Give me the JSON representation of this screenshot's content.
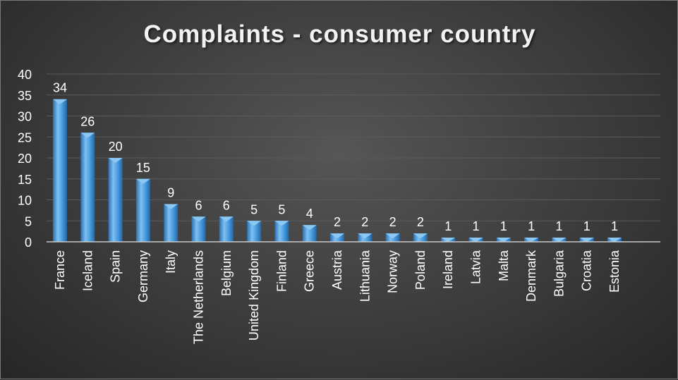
{
  "chart_data": {
    "type": "bar",
    "title": "Complaints - consumer country",
    "xlabel": "",
    "ylabel": "",
    "ylim": [
      0,
      40
    ],
    "yticks": [
      0,
      5,
      10,
      15,
      20,
      25,
      30,
      35,
      40
    ],
    "grid": true,
    "categories": [
      "France",
      "Iceland",
      "Spain",
      "Germany",
      "Italy",
      "The Netherlands",
      "Belgium",
      "United Kingdom",
      "Finland",
      "Greece",
      "Austria",
      "Lithuania",
      "Norway",
      "Poland",
      "Ireland",
      "Latvia",
      "Malta",
      "Denmark",
      "Bulgaria",
      "Croatia",
      "Estonia"
    ],
    "values": [
      34,
      26,
      20,
      15,
      9,
      6,
      6,
      5,
      5,
      4,
      2,
      2,
      2,
      2,
      1,
      1,
      1,
      1,
      1,
      1,
      1
    ],
    "colors": {
      "bar": "#4a9ee0",
      "bar_light": "#8cc8f4",
      "bar_dark": "#2a6fae",
      "text": "#ffffff",
      "grid": "#5a5a5a"
    }
  }
}
